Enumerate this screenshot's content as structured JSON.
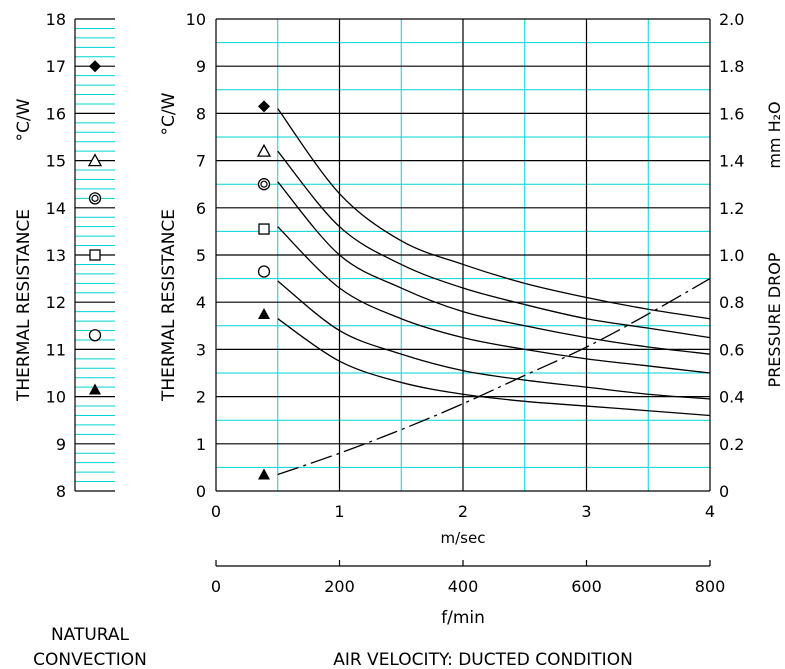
{
  "chart_data": [
    {
      "type": "scatter",
      "panel": "natural_convection",
      "ylabel_main": "THERMAL  RESISTANCE",
      "ylabel_unit": "°C/W",
      "ylim": [
        8,
        18
      ],
      "yticks": [
        "8",
        "9",
        "10",
        "11",
        "12",
        "13",
        "14",
        "15",
        "16",
        "17",
        "18"
      ],
      "caption": [
        "NATURAL",
        "CONVECTION"
      ],
      "points": [
        {
          "marker": "diamond-filled",
          "y": 17.0
        },
        {
          "marker": "triangle-open",
          "y": 15.0
        },
        {
          "marker": "double-circle",
          "y": 14.2
        },
        {
          "marker": "square-open",
          "y": 13.0
        },
        {
          "marker": "circle-open",
          "y": 11.3
        },
        {
          "marker": "triangle-filled",
          "y": 10.15
        }
      ]
    },
    {
      "type": "line",
      "panel": "air_velocity",
      "ylabel_main": "THERMAL  RESISTANCE",
      "ylabel_unit": "°C/W",
      "y2label_unit": "mm H₂O",
      "y2label_main": "PRESSURE  DROP",
      "xlabel_ms": "m/sec",
      "xlabel_fmin": "f/min",
      "caption": "AIR VELOCITY:  DUCTED CONDITION",
      "xlim": [
        0,
        4
      ],
      "ylim": [
        0,
        10
      ],
      "y2lim": [
        0,
        2.0
      ],
      "xticks_ms": [
        "0",
        "1",
        "2",
        "3",
        "4"
      ],
      "xticks_fmin": [
        "0",
        "200",
        "400",
        "600",
        "800"
      ],
      "yticks": [
        "0",
        "1",
        "2",
        "3",
        "4",
        "5",
        "6",
        "7",
        "8",
        "9",
        "10"
      ],
      "y2ticks": [
        "0",
        "0.2",
        "0.4",
        "0.6",
        "0.8",
        "1.0",
        "1.2",
        "1.4",
        "1.6",
        "1.8",
        "2.0"
      ],
      "curves": [
        {
          "x": [
            0.5,
            1.0,
            1.5,
            2.0,
            2.5,
            3.0,
            3.5,
            4.0
          ],
          "y": [
            8.1,
            6.3,
            5.3,
            4.8,
            4.4,
            4.1,
            3.85,
            3.65
          ]
        },
        {
          "x": [
            0.5,
            1.0,
            1.5,
            2.0,
            2.5,
            3.0,
            3.5,
            4.0
          ],
          "y": [
            7.2,
            5.6,
            4.8,
            4.3,
            3.95,
            3.65,
            3.45,
            3.25
          ]
        },
        {
          "x": [
            0.5,
            1.0,
            1.5,
            2.0,
            2.5,
            3.0,
            3.5,
            4.0
          ],
          "y": [
            6.55,
            5.0,
            4.3,
            3.8,
            3.5,
            3.25,
            3.05,
            2.9
          ]
        },
        {
          "x": [
            0.5,
            1.0,
            1.5,
            2.0,
            2.5,
            3.0,
            3.5,
            4.0
          ],
          "y": [
            5.6,
            4.3,
            3.65,
            3.25,
            3.0,
            2.8,
            2.65,
            2.5
          ]
        },
        {
          "x": [
            0.5,
            1.0,
            1.5,
            2.0,
            2.5,
            3.0,
            3.5,
            4.0
          ],
          "y": [
            4.45,
            3.4,
            2.9,
            2.55,
            2.35,
            2.2,
            2.05,
            1.95
          ]
        },
        {
          "x": [
            0.5,
            1.0,
            1.5,
            2.0,
            2.5,
            3.0,
            3.5,
            4.0
          ],
          "y": [
            3.65,
            2.75,
            2.3,
            2.05,
            1.9,
            1.8,
            1.7,
            1.6
          ]
        }
      ],
      "pressure_drop": {
        "x": [
          0.5,
          1.0,
          1.5,
          2.0,
          2.5,
          3.0,
          3.5,
          4.0
        ],
        "y2": [
          0.07,
          0.16,
          0.26,
          0.37,
          0.49,
          0.61,
          0.75,
          0.9
        ]
      },
      "markers": [
        {
          "marker": "diamond-filled",
          "y": 8.15
        },
        {
          "marker": "triangle-open",
          "y": 7.2
        },
        {
          "marker": "double-circle",
          "y": 6.5
        },
        {
          "marker": "square-open",
          "y": 5.55
        },
        {
          "marker": "circle-open",
          "y": 4.65
        },
        {
          "marker": "triangle-filled",
          "y": 3.75
        },
        {
          "marker": "triangle-filled",
          "y": 0.35
        }
      ],
      "colors": {
        "major_grid": "#000000",
        "minor_grid": "#00d4d4",
        "curves": "#000000"
      }
    }
  ]
}
